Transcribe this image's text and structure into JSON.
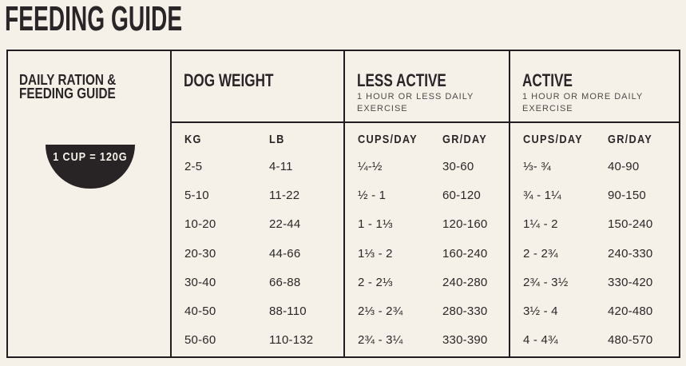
{
  "page": {
    "title": "FEEDING GUIDE"
  },
  "colors": {
    "background": "#f5f1e9",
    "ink": "#2a2526",
    "line": "#211d1e",
    "badge_bg": "#282324",
    "badge_text": "#f5f1e9",
    "subtitle": "#4e4a48"
  },
  "ration": {
    "title_line1": "DAILY RATION &",
    "title_line2": "FEEDING GUIDE",
    "badge_label": "1 CUP = 120G"
  },
  "dog_weight": {
    "title": "DOG WEIGHT",
    "headers": [
      "KG",
      "LB"
    ],
    "rows": [
      [
        "2-5",
        "4-11"
      ],
      [
        "5-10",
        "11-22"
      ],
      [
        "10-20",
        "22-44"
      ],
      [
        "20-30",
        "44-66"
      ],
      [
        "30-40",
        "66-88"
      ],
      [
        "40-50",
        "88-110"
      ],
      [
        "50-60",
        "110-132"
      ]
    ]
  },
  "less_active": {
    "title": "LESS ACTIVE",
    "subtitle": "1 HOUR OR LESS DAILY EXERCISE",
    "headers": [
      "CUPS/DAY",
      "GR/DAY"
    ],
    "rows": [
      [
        "¼-½",
        "30-60"
      ],
      [
        "½ - 1",
        "60-120"
      ],
      [
        "1 - 1⅓",
        "120-160"
      ],
      [
        "1⅓ - 2",
        "160-240"
      ],
      [
        "2 - 2⅓",
        "240-280"
      ],
      [
        "2⅓ - 2¾",
        "280-330"
      ],
      [
        "2¾ - 3¼",
        "330-390"
      ]
    ]
  },
  "active": {
    "title": "ACTIVE",
    "subtitle": "1 HOUR OR MORE DAILY EXERCISE",
    "headers": [
      "CUPS/DAY",
      "GR/DAY"
    ],
    "rows": [
      [
        "⅓- ¾",
        "40-90"
      ],
      [
        "¾ - 1¼",
        "90-150"
      ],
      [
        "1¼ - 2",
        "150-240"
      ],
      [
        "2 - 2¾",
        "240-330"
      ],
      [
        "2¾ - 3½",
        "330-420"
      ],
      [
        "3½ - 4",
        "420-480"
      ],
      [
        "4 - 4¾",
        "480-570"
      ]
    ]
  }
}
